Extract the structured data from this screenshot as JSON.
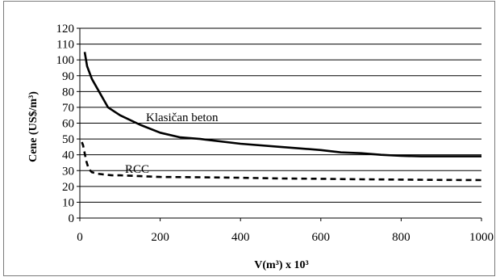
{
  "chart_data": {
    "type": "line",
    "xlabel": "V(m³) x 10³",
    "ylabel": "Cene (US$/m³)",
    "xlim": [
      0,
      1000
    ],
    "ylim": [
      0,
      120
    ],
    "x_ticks": [
      0,
      200,
      400,
      600,
      800,
      1000
    ],
    "y_ticks": [
      0,
      10,
      20,
      30,
      40,
      50,
      60,
      70,
      80,
      90,
      100,
      110,
      120
    ],
    "grid": "horizontal",
    "legend": "none",
    "series": [
      {
        "name": "Klasičan beton",
        "style": "solid",
        "color": "#000000",
        "x": [
          12,
          18,
          30,
          50,
          70,
          100,
          150,
          200,
          250,
          300,
          400,
          500,
          600,
          650,
          700,
          750,
          800,
          850,
          900,
          1000
        ],
        "y": [
          105,
          96,
          88,
          79,
          70,
          65,
          59,
          54,
          51,
          50,
          47,
          45,
          43,
          41.5,
          41,
          40,
          39.3,
          39,
          39,
          39
        ]
      },
      {
        "name": "RCC",
        "style": "dashed",
        "color": "#000000",
        "x": [
          5,
          8,
          12,
          16,
          22,
          30,
          45,
          60,
          80,
          100,
          150,
          200,
          300,
          400,
          500,
          600,
          700,
          800,
          900,
          1000
        ],
        "y": [
          48,
          46,
          41,
          36,
          31,
          29,
          28,
          27.5,
          27,
          27,
          26.5,
          26,
          25.8,
          25.5,
          25,
          24.8,
          24.5,
          24.3,
          24.1,
          24
        ]
      }
    ]
  }
}
